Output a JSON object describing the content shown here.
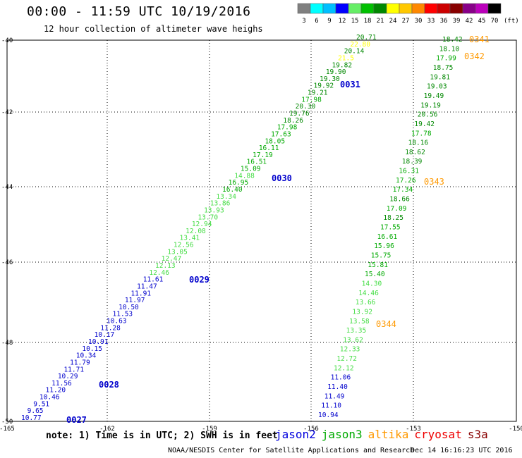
{
  "header": {
    "title": "00:00 - 11:59 UTC 10/19/2016",
    "subtitle": "12 hour collection of altimeter wave heighs"
  },
  "color_scale": {
    "labels": [
      "3",
      "6",
      "9",
      "12",
      "15",
      "18",
      "21",
      "24",
      "27",
      "30",
      "33",
      "36",
      "39",
      "42",
      "45",
      "70"
    ],
    "unit": "(ft)",
    "colors": [
      "#808080",
      "#00ffff",
      "#00bfff",
      "#0000ff",
      "#66ee66",
      "#00c000",
      "#008800",
      "#ffff00",
      "#ffc800",
      "#ff8800",
      "#ff0000",
      "#cc0000",
      "#880000",
      "#880088",
      "#bb00bb",
      "#000000"
    ]
  },
  "axes": {
    "lat_labels": [
      "-40",
      "-42",
      "-44",
      "-46",
      "-48",
      "-50"
    ],
    "lon_labels": [
      "-165",
      "-162",
      "-159",
      "-156",
      "-153",
      "-150"
    ]
  },
  "tracks": [
    {
      "satellite": "jason2",
      "points": [
        {
          "v": "10.77",
          "c": "#0000cc"
        },
        {
          "v": "9.65",
          "c": "#0000cc"
        },
        {
          "v": "9.51",
          "c": "#0000cc"
        },
        {
          "v": "10.46",
          "c": "#0000cc"
        },
        {
          "v": "11.20",
          "c": "#0000cc"
        },
        {
          "v": "11.56",
          "c": "#0000cc"
        },
        {
          "v": "10.29",
          "c": "#0000cc"
        },
        {
          "v": "11.71",
          "c": "#0000cc"
        },
        {
          "v": "11.79",
          "c": "#0000cc"
        },
        {
          "v": "10.34",
          "c": "#0000cc"
        },
        {
          "v": "10.15",
          "c": "#0000cc"
        },
        {
          "v": "10.91",
          "c": "#0000cc"
        },
        {
          "v": "10.17",
          "c": "#0000cc"
        },
        {
          "v": "11.28",
          "c": "#0000cc"
        },
        {
          "v": "10.63",
          "c": "#0000cc"
        },
        {
          "v": "11.53",
          "c": "#0000cc"
        },
        {
          "v": "10.50",
          "c": "#0000cc"
        },
        {
          "v": "11.97",
          "c": "#0000cc"
        },
        {
          "v": "11.91",
          "c": "#0000cc"
        },
        {
          "v": "11.47",
          "c": "#0000cc"
        },
        {
          "v": "11.61",
          "c": "#0000cc"
        },
        {
          "v": "12.46",
          "c": "#44dd44"
        },
        {
          "v": "12.13",
          "c": "#44dd44"
        },
        {
          "v": "12.47",
          "c": "#44dd44"
        },
        {
          "v": "13.05",
          "c": "#44dd44"
        },
        {
          "v": "12.56",
          "c": "#44dd44"
        },
        {
          "v": "13.41",
          "c": "#44dd44"
        },
        {
          "v": "12.08",
          "c": "#44dd44"
        },
        {
          "v": "12.94",
          "c": "#44dd44"
        },
        {
          "v": "13.70",
          "c": "#44dd44"
        },
        {
          "v": "13.93",
          "c": "#44dd44"
        },
        {
          "v": "13.86",
          "c": "#44dd44"
        },
        {
          "v": "13.34",
          "c": "#44dd44"
        },
        {
          "v": "16.40",
          "c": "#00aa00"
        },
        {
          "v": "16.95",
          "c": "#00aa00"
        },
        {
          "v": "14.88",
          "c": "#44dd44"
        },
        {
          "v": "15.09",
          "c": "#00aa00"
        },
        {
          "v": "16.51",
          "c": "#00aa00"
        },
        {
          "v": "17.19",
          "c": "#00aa00"
        },
        {
          "v": "16.11",
          "c": "#00aa00"
        },
        {
          "v": "18.05",
          "c": "#00aa00"
        },
        {
          "v": "17.63",
          "c": "#00aa00"
        },
        {
          "v": "17.98",
          "c": "#00aa00"
        },
        {
          "v": "18.26",
          "c": "#008800"
        },
        {
          "v": "19.76",
          "c": "#008800"
        },
        {
          "v": "20.30",
          "c": "#008800"
        },
        {
          "v": "17.98",
          "c": "#00aa00"
        },
        {
          "v": "19.21",
          "c": "#008800"
        },
        {
          "v": "19.92",
          "c": "#008800"
        },
        {
          "v": "19.30",
          "c": "#008800"
        },
        {
          "v": "19.90",
          "c": "#008800"
        },
        {
          "v": "19.82",
          "c": "#008800"
        },
        {
          "v": "21.5",
          "c": "#ffff00"
        },
        {
          "v": "20.14",
          "c": "#008800"
        },
        {
          "v": "22.80",
          "c": "#ffff00"
        },
        {
          "v": "20.71",
          "c": "#008800"
        }
      ],
      "times": [
        "0027",
        "0028",
        "0029",
        "0030",
        "0031"
      ]
    },
    {
      "satellite": "jason3",
      "points": [
        {
          "v": "10.94",
          "c": "#0000cc"
        },
        {
          "v": "11.10",
          "c": "#0000cc"
        },
        {
          "v": "11.49",
          "c": "#0000cc"
        },
        {
          "v": "11.40",
          "c": "#0000cc"
        },
        {
          "v": "11.06",
          "c": "#0000cc"
        },
        {
          "v": "12.12",
          "c": "#44dd44"
        },
        {
          "v": "12.72",
          "c": "#44dd44"
        },
        {
          "v": "12.33",
          "c": "#44dd44"
        },
        {
          "v": "13.62",
          "c": "#44dd44"
        },
        {
          "v": "13.35",
          "c": "#44dd44"
        },
        {
          "v": "13.58",
          "c": "#44dd44"
        },
        {
          "v": "13.92",
          "c": "#44dd44"
        },
        {
          "v": "13.66",
          "c": "#44dd44"
        },
        {
          "v": "14.46",
          "c": "#44dd44"
        },
        {
          "v": "14.30",
          "c": "#44dd44"
        },
        {
          "v": "15.40",
          "c": "#00aa00"
        },
        {
          "v": "15.81",
          "c": "#00aa00"
        },
        {
          "v": "15.75",
          "c": "#00aa00"
        },
        {
          "v": "15.96",
          "c": "#00aa00"
        },
        {
          "v": "16.61",
          "c": "#00aa00"
        },
        {
          "v": "17.55",
          "c": "#00aa00"
        },
        {
          "v": "18.25",
          "c": "#008800"
        },
        {
          "v": "17.09",
          "c": "#00aa00"
        },
        {
          "v": "18.66",
          "c": "#008800"
        },
        {
          "v": "17.34",
          "c": "#00aa00"
        },
        {
          "v": "17.26",
          "c": "#00aa00"
        },
        {
          "v": "16.31",
          "c": "#00aa00"
        },
        {
          "v": "18.39",
          "c": "#008800"
        },
        {
          "v": "18.62",
          "c": "#008800"
        },
        {
          "v": "18.16",
          "c": "#008800"
        },
        {
          "v": "17.78",
          "c": "#00aa00"
        },
        {
          "v": "19.42",
          "c": "#008800"
        },
        {
          "v": "20.56",
          "c": "#008800"
        },
        {
          "v": "19.19",
          "c": "#008800"
        },
        {
          "v": "19.49",
          "c": "#008800"
        },
        {
          "v": "19.03",
          "c": "#008800"
        },
        {
          "v": "19.81",
          "c": "#008800"
        },
        {
          "v": "18.75",
          "c": "#008800"
        },
        {
          "v": "17.99",
          "c": "#00aa00"
        },
        {
          "v": "18.10",
          "c": "#008800"
        },
        {
          "v": "18.42",
          "c": "#008800"
        }
      ],
      "times": [
        "0341",
        "0342",
        "0343",
        "0344"
      ]
    }
  ],
  "footer": {
    "note": "note: 1) Time is in UTC; 2) SWH is in feet",
    "satellites": [
      {
        "name": "jason2",
        "color": "#0000dd"
      },
      {
        "name": "jason3",
        "color": "#00aa00"
      },
      {
        "name": "altika",
        "color": "#ff9900"
      },
      {
        "name": "cryosat",
        "color": "#ee0000"
      },
      {
        "name": "s3a",
        "color": "#880000"
      }
    ],
    "credit": "NOAA/NESDIS Center for Satellite Applications and Research",
    "timestamp": "Dec 14 16:16:23 UTC 2016"
  }
}
